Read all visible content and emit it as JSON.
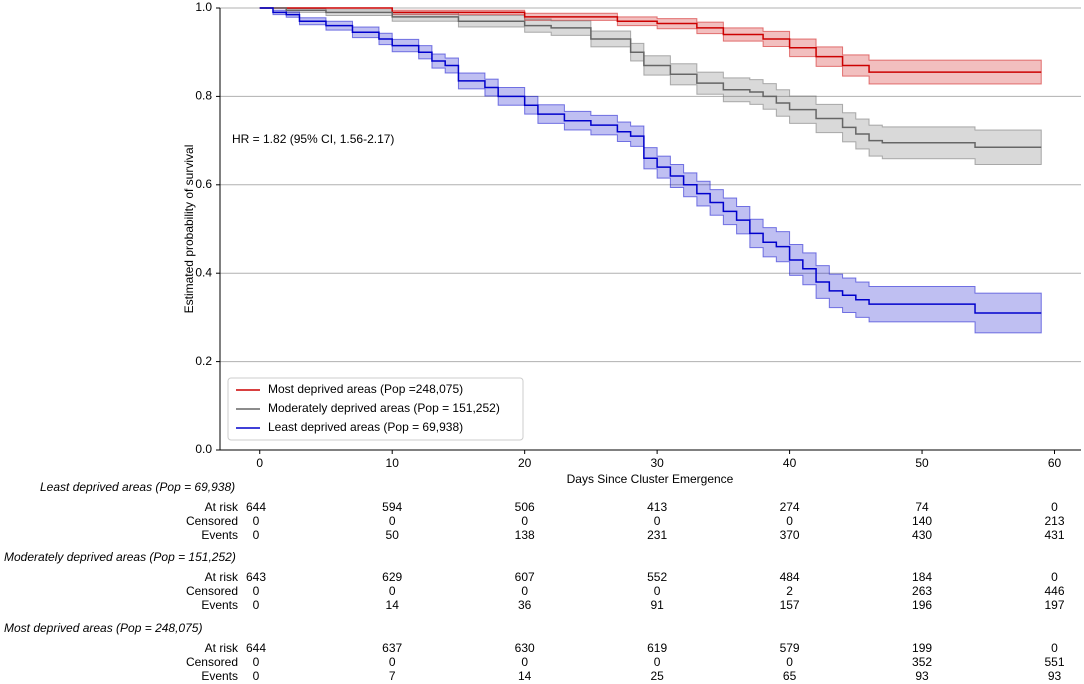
{
  "chart_data": {
    "type": "step",
    "y_label": "Estimated probability of survival",
    "x_label": "Days Since Cluster Emergence",
    "annotation": "HR = 1.82 (95% CI, 1.56-2.17)",
    "xlim": [
      -3,
      62
    ],
    "xticks": [
      0,
      10,
      20,
      30,
      40,
      50,
      60
    ],
    "ylim": [
      0,
      1
    ],
    "yticks": [
      {
        "value": 0,
        "label": "0.0"
      },
      0.2,
      0.4,
      0.6,
      0.8,
      {
        "value": 1,
        "label": "1.0"
      }
    ],
    "grid": "y",
    "legend": "lower left",
    "series": [
      {
        "name": "Most deprived areas (Pop =248,075)",
        "color": "#cc0000",
        "x": [
          0,
          10,
          20,
          27,
          30,
          33,
          35,
          38,
          40,
          42,
          44,
          46,
          59
        ],
        "values": [
          1.0,
          0.99,
          0.98,
          0.97,
          0.965,
          0.955,
          0.94,
          0.93,
          0.91,
          0.89,
          0.87,
          0.855,
          0.855
        ],
        "ci_lower": [
          1.0,
          0.985,
          0.972,
          0.96,
          0.953,
          0.942,
          0.925,
          0.913,
          0.89,
          0.868,
          0.846,
          0.828,
          0.828
        ],
        "ci_upper": [
          1.0,
          0.995,
          0.988,
          0.98,
          0.976,
          0.968,
          0.955,
          0.947,
          0.93,
          0.912,
          0.894,
          0.882,
          0.882
        ]
      },
      {
        "name": "Moderately deprived areas (Pop = 151,252)",
        "color": "#666666",
        "x": [
          0,
          2,
          5,
          10,
          15,
          20,
          22,
          25,
          28,
          29,
          31,
          33,
          35,
          37,
          38,
          39,
          40,
          42,
          44,
          45,
          46,
          47,
          54,
          59
        ],
        "values": [
          1.0,
          0.995,
          0.99,
          0.98,
          0.97,
          0.96,
          0.955,
          0.93,
          0.9,
          0.87,
          0.85,
          0.83,
          0.815,
          0.81,
          0.8,
          0.785,
          0.77,
          0.75,
          0.73,
          0.715,
          0.7,
          0.695,
          0.685,
          0.685
        ],
        "ci_lower": [
          1.0,
          0.99,
          0.983,
          0.97,
          0.957,
          0.945,
          0.938,
          0.912,
          0.88,
          0.848,
          0.826,
          0.805,
          0.788,
          0.782,
          0.771,
          0.755,
          0.739,
          0.718,
          0.697,
          0.681,
          0.665,
          0.659,
          0.646,
          0.646
        ],
        "ci_upper": [
          1.0,
          0.999,
          0.996,
          0.99,
          0.983,
          0.975,
          0.971,
          0.948,
          0.92,
          0.892,
          0.874,
          0.855,
          0.842,
          0.838,
          0.829,
          0.815,
          0.801,
          0.782,
          0.763,
          0.749,
          0.735,
          0.731,
          0.724,
          0.724
        ]
      },
      {
        "name": "Least deprived areas (Pop = 69,938)",
        "color": "#0000cc",
        "x": [
          0,
          1,
          2,
          3,
          5,
          7,
          9,
          10,
          12,
          13,
          14,
          15,
          17,
          18,
          20,
          21,
          23,
          25,
          27,
          28,
          29,
          30,
          31,
          32,
          33,
          34,
          35,
          36,
          37,
          38,
          39,
          40,
          41,
          42,
          43,
          44,
          45,
          46,
          54,
          59
        ],
        "values": [
          1.0,
          0.99,
          0.985,
          0.97,
          0.96,
          0.945,
          0.93,
          0.915,
          0.9,
          0.88,
          0.87,
          0.835,
          0.82,
          0.8,
          0.78,
          0.76,
          0.745,
          0.735,
          0.72,
          0.71,
          0.66,
          0.64,
          0.62,
          0.6,
          0.58,
          0.56,
          0.54,
          0.52,
          0.49,
          0.47,
          0.46,
          0.43,
          0.41,
          0.38,
          0.36,
          0.35,
          0.34,
          0.33,
          0.31,
          0.31
        ],
        "ci_lower": [
          1.0,
          0.985,
          0.979,
          0.962,
          0.95,
          0.933,
          0.917,
          0.901,
          0.885,
          0.864,
          0.853,
          0.817,
          0.801,
          0.78,
          0.76,
          0.739,
          0.724,
          0.713,
          0.698,
          0.687,
          0.636,
          0.615,
          0.594,
          0.573,
          0.552,
          0.531,
          0.51,
          0.489,
          0.458,
          0.437,
          0.426,
          0.395,
          0.374,
          0.343,
          0.322,
          0.311,
          0.3,
          0.29,
          0.265,
          0.265
        ],
        "ci_upper": [
          1.0,
          0.995,
          0.991,
          0.978,
          0.97,
          0.957,
          0.943,
          0.929,
          0.915,
          0.896,
          0.887,
          0.853,
          0.839,
          0.82,
          0.8,
          0.781,
          0.766,
          0.757,
          0.742,
          0.733,
          0.684,
          0.665,
          0.646,
          0.627,
          0.608,
          0.589,
          0.57,
          0.551,
          0.522,
          0.503,
          0.494,
          0.465,
          0.446,
          0.417,
          0.398,
          0.389,
          0.38,
          0.37,
          0.355,
          0.355
        ]
      }
    ]
  },
  "risk_table": {
    "groups": [
      {
        "title": "Least deprived areas (Pop = 69,938)",
        "rows": [
          {
            "label": "At risk",
            "values": [
              644,
              594,
              506,
              413,
              274,
              74,
              0
            ]
          },
          {
            "label": "Censored",
            "values": [
              0,
              0,
              0,
              0,
              0,
              140,
              213
            ]
          },
          {
            "label": "Events",
            "values": [
              0,
              50,
              138,
              231,
              370,
              430,
              431
            ]
          }
        ]
      },
      {
        "title": "Moderately deprived areas (Pop = 151,252)",
        "rows": [
          {
            "label": "At risk",
            "values": [
              643,
              629,
              607,
              552,
              484,
              184,
              0
            ]
          },
          {
            "label": "Censored",
            "values": [
              0,
              0,
              0,
              0,
              2,
              263,
              446
            ]
          },
          {
            "label": "Events",
            "values": [
              0,
              14,
              36,
              91,
              157,
              196,
              197
            ]
          }
        ]
      },
      {
        "title": "Most deprived areas (Pop = 248,075)",
        "rows": [
          {
            "label": "At risk",
            "values": [
              644,
              637,
              630,
              619,
              579,
              199,
              0
            ]
          },
          {
            "label": "Censored",
            "values": [
              0,
              0,
              0,
              0,
              0,
              352,
              551
            ]
          },
          {
            "label": "Events",
            "values": [
              0,
              7,
              14,
              25,
              65,
              93,
              93
            ]
          }
        ]
      }
    ]
  }
}
